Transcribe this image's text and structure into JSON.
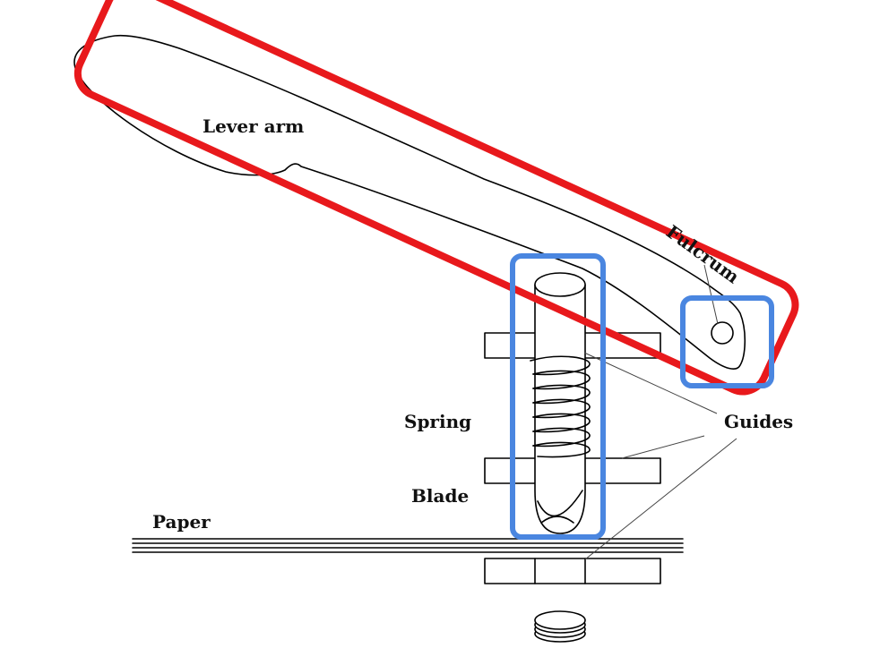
{
  "labels": {
    "lever_arm": "Lever arm",
    "fulcrum": "Fulcrum",
    "spring": "Spring",
    "guides": "Guides",
    "blade": "Blade",
    "paper": "Paper"
  },
  "colors": {
    "highlight_red": "#e8191c",
    "highlight_blue": "#4a86e0",
    "ink": "#000000",
    "background": "#ffffff"
  }
}
